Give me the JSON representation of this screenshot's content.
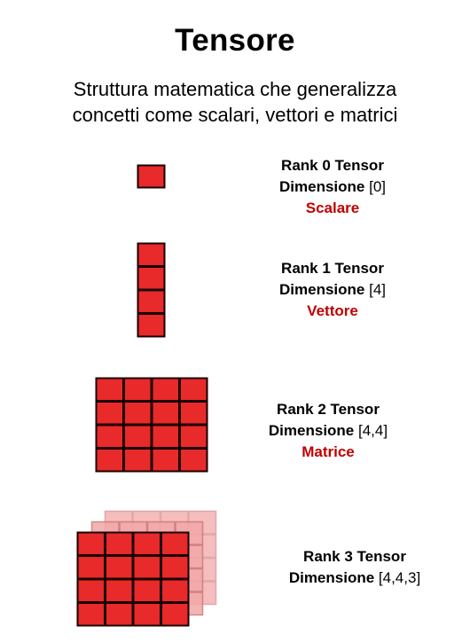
{
  "title": "Tensore",
  "subtitle_line1": "Struttura matematica che generalizza",
  "subtitle_line2": "concetti come scalari, vettori e matrici",
  "colors": {
    "cell_fill": "#e82a2a",
    "cell_stroke": "#1a0000",
    "back_layer": "#f2a7a7",
    "accent_text": "#c00000"
  },
  "tensors": [
    {
      "rank_label": "Rank 0 Tensor",
      "dim_prefix": "Dimensione ",
      "dim_value": "[0]",
      "kind": "Scalare"
    },
    {
      "rank_label": "Rank 1 Tensor",
      "dim_prefix": "Dimensione ",
      "dim_value": "[4]",
      "kind": "Vettore"
    },
    {
      "rank_label": "Rank 2 Tensor",
      "dim_prefix": "Dimensione ",
      "dim_value": "[4,4]",
      "kind": "Matrice"
    },
    {
      "rank_label": "Rank 3 Tensor",
      "dim_prefix": "Dimensione ",
      "dim_value": "[4,4,3]",
      "kind": ""
    }
  ]
}
